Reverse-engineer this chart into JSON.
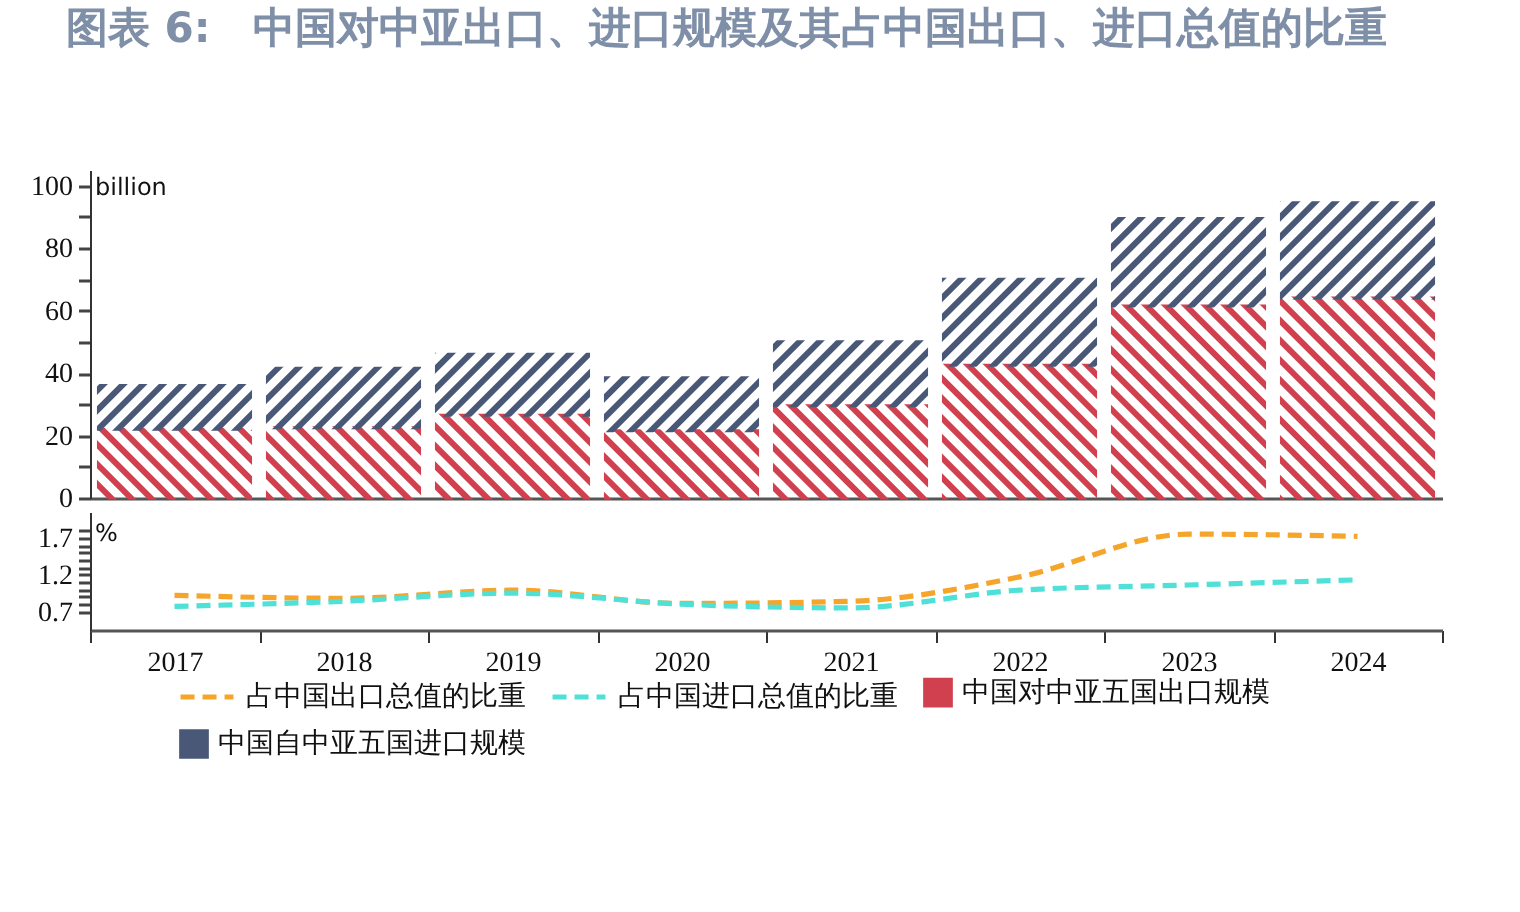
{
  "chart_data": [
    {
      "type": "bar",
      "title": "图表 6:　中国对中亚出口、进口规模及其占中国出口、进口总值的比重",
      "categories": [
        "2017",
        "2018",
        "2019",
        "2020",
        "2021",
        "2022",
        "2023",
        "2024"
      ],
      "stacked": true,
      "tick_labels": "y",
      "legend": "bottom",
      "ylabel": "billion",
      "ylim": [
        0,
        105
      ],
      "yticks": [
        0,
        {
          "value": 10,
          "label": null
        },
        20,
        {
          "value": 30,
          "label": null
        },
        40,
        {
          "value": 50,
          "label": null
        },
        60,
        {
          "value": 70,
          "label": null
        },
        80,
        {
          "value": 90,
          "label": null
        },
        100
      ],
      "series": [
        {
          "name": "中国对中亚五国出口规模",
          "color": "#d0404f",
          "values": [
            22,
            22.5,
            26.5,
            21.5,
            29.5,
            42.5,
            61.5,
            64
          ]
        },
        {
          "name": "中国自中亚五国进口规模",
          "color": "#4a5878",
          "values": [
            14,
            19,
            19.5,
            17,
            20.5,
            27.5,
            28,
            30.5
          ]
        }
      ]
    },
    {
      "type": "line",
      "categories": [
        "2017",
        "2018",
        "2019",
        "2020",
        "2021",
        "2022",
        "2023",
        "2024"
      ],
      "legend": "bottom",
      "ylabel": "%",
      "ylim": [
        0.45,
        2.05
      ],
      "yticks": [
        0.7,
        {
          "value": 0.8,
          "label": null
        },
        {
          "value": 0.9,
          "label": null
        },
        {
          "value": 1.0,
          "label": null
        },
        {
          "value": 1.1,
          "label": null
        },
        1.2,
        {
          "value": 1.3,
          "label": null
        },
        {
          "value": 1.4,
          "label": null
        },
        {
          "value": 1.5,
          "label": null
        },
        {
          "value": 1.6,
          "label": null
        },
        1.7,
        {
          "value": 1.8,
          "label": null
        }
      ],
      "series": [
        {
          "name": "占中国出口总值的比重",
          "color": "#f5a52a",
          "line_style": "dashed",
          "values": [
            0.92,
            0.88,
            0.99,
            0.81,
            0.84,
            1.17,
            1.75,
            1.72
          ]
        },
        {
          "name": "占中国进口总值的比重",
          "color": "#4fe0d8",
          "line_style": "dashed",
          "values": [
            0.77,
            0.84,
            0.95,
            0.8,
            0.75,
            0.99,
            1.06,
            1.13
          ]
        }
      ]
    }
  ]
}
